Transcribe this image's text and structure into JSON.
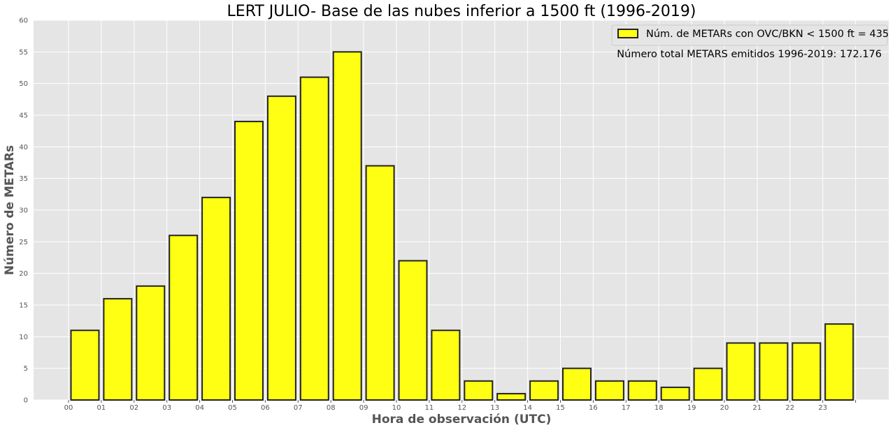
{
  "chart_data": {
    "type": "bar",
    "title": "LERT JULIO- Base de las nubes inferior a 1500 ft (1996-2019)",
    "xlabel": "Hora de observación (UTC)",
    "ylabel": "Número de METARs",
    "categories": [
      "00",
      "01",
      "02",
      "03",
      "04",
      "05",
      "06",
      "07",
      "08",
      "09",
      "10",
      "11",
      "12",
      "13",
      "14",
      "15",
      "16",
      "17",
      "18",
      "19",
      "20",
      "21",
      "22",
      "23"
    ],
    "series": [
      {
        "name": "Núm. de METARs con OVC/BKN < 1500 ft = 435",
        "values": [
          11,
          16,
          18,
          26,
          32,
          44,
          48,
          51,
          55,
          37,
          22,
          11,
          3,
          1,
          3,
          5,
          3,
          3,
          2,
          5,
          9,
          9,
          9,
          12
        ]
      }
    ],
    "ylim": [
      0,
      60
    ],
    "yticks": [
      0,
      5,
      10,
      15,
      20,
      25,
      30,
      35,
      40,
      45,
      50,
      55,
      60
    ],
    "grid": true,
    "legend_position": "top-right",
    "annotation": "Número total METARS emitidos 1996-2019: 172.176",
    "colors": {
      "bar_fill": "#ffff14",
      "bar_edge": "#222222",
      "plot_background": "#e5e5e5",
      "grid": "#ffffff"
    }
  }
}
